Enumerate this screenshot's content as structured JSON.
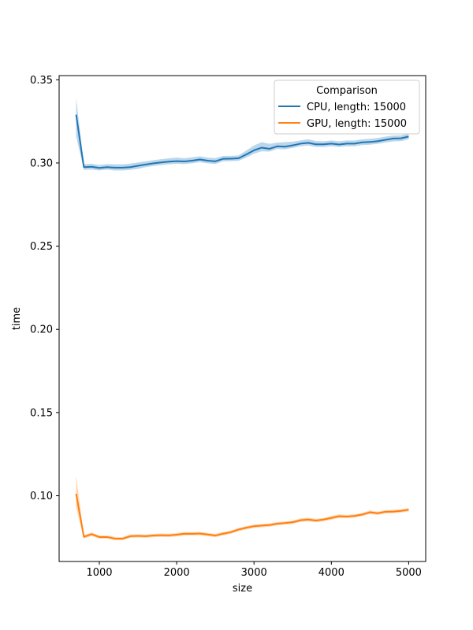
{
  "chart_data": {
    "type": "line",
    "title": "",
    "xlabel": "size",
    "ylabel": "time",
    "xlim": [
      480,
      5220
    ],
    "ylim": [
      0.0605,
      0.3525
    ],
    "xticks": [
      1000,
      2000,
      3000,
      4000,
      5000
    ],
    "xtick_labels": [
      "1000",
      "2000",
      "3000",
      "4000",
      "5000"
    ],
    "yticks": [
      0.1,
      0.15,
      0.2,
      0.25,
      0.3,
      0.35
    ],
    "ytick_labels": [
      "0.10",
      "0.15",
      "0.20",
      "0.25",
      "0.30",
      "0.35"
    ],
    "grid": false,
    "legend": {
      "title": "Comparison",
      "placement": "top-right"
    },
    "x": [
      700,
      800,
      900,
      1000,
      1100,
      1200,
      1300,
      1400,
      1500,
      1600,
      1700,
      1800,
      1900,
      2000,
      2100,
      2200,
      2300,
      2400,
      2500,
      2600,
      2700,
      2800,
      2900,
      3000,
      3100,
      3200,
      3300,
      3400,
      3500,
      3600,
      3700,
      3800,
      3900,
      4000,
      4100,
      4200,
      4300,
      4400,
      4500,
      4600,
      4700,
      4800,
      4900,
      5000
    ],
    "series": [
      {
        "name": "CPU, length: 15000",
        "color": "#1f77b4",
        "band_color": "#a6c8e4",
        "values": [
          0.329,
          0.2975,
          0.2977,
          0.297,
          0.2975,
          0.2972,
          0.2972,
          0.2975,
          0.2983,
          0.2991,
          0.2998,
          0.3003,
          0.3008,
          0.3011,
          0.3009,
          0.3014,
          0.3021,
          0.3014,
          0.301,
          0.3025,
          0.3026,
          0.3028,
          0.3051,
          0.3076,
          0.3092,
          0.3085,
          0.31,
          0.3098,
          0.3106,
          0.3116,
          0.3121,
          0.3112,
          0.3112,
          0.3116,
          0.3111,
          0.3116,
          0.3116,
          0.3124,
          0.3126,
          0.3131,
          0.3139,
          0.3147,
          0.3148,
          0.3159
        ],
        "band_low": [
          0.316,
          0.2958,
          0.296,
          0.2955,
          0.296,
          0.2955,
          0.2955,
          0.2958,
          0.2965,
          0.2975,
          0.2982,
          0.2987,
          0.2992,
          0.2995,
          0.2993,
          0.2998,
          0.3005,
          0.2998,
          0.2994,
          0.301,
          0.3011,
          0.3013,
          0.3032,
          0.3055,
          0.307,
          0.3068,
          0.3084,
          0.3082,
          0.309,
          0.31,
          0.3105,
          0.3096,
          0.3096,
          0.31,
          0.3096,
          0.31,
          0.31,
          0.3108,
          0.311,
          0.3115,
          0.3123,
          0.313,
          0.3131,
          0.3142
        ],
        "band_high": [
          0.339,
          0.2993,
          0.2995,
          0.2988,
          0.2993,
          0.2992,
          0.2992,
          0.2996,
          0.3003,
          0.301,
          0.3017,
          0.3023,
          0.3028,
          0.3032,
          0.3028,
          0.3034,
          0.304,
          0.3032,
          0.3029,
          0.3042,
          0.3043,
          0.3045,
          0.3075,
          0.3105,
          0.3125,
          0.3115,
          0.3122,
          0.3125,
          0.3128,
          0.3135,
          0.3142,
          0.3132,
          0.313,
          0.3135,
          0.313,
          0.3135,
          0.3135,
          0.3142,
          0.3145,
          0.315,
          0.3158,
          0.3165,
          0.3166,
          0.3177
        ]
      },
      {
        "name": "GPU, length: 15000",
        "color": "#ff7f0e",
        "band_color": "#ffc89a",
        "values": [
          0.1012,
          0.0753,
          0.0769,
          0.0752,
          0.0752,
          0.0743,
          0.0742,
          0.0757,
          0.0759,
          0.0757,
          0.0761,
          0.0763,
          0.0762,
          0.0766,
          0.0772,
          0.0771,
          0.0773,
          0.0767,
          0.0761,
          0.0772,
          0.0781,
          0.0797,
          0.0808,
          0.0817,
          0.0821,
          0.0824,
          0.0832,
          0.0836,
          0.0841,
          0.0853,
          0.0857,
          0.0851,
          0.0857,
          0.0867,
          0.0877,
          0.0875,
          0.0879,
          0.0887,
          0.0901,
          0.0895,
          0.0904,
          0.0905,
          0.0909,
          0.0916
        ],
        "band_low": [
          0.093,
          0.0743,
          0.0758,
          0.0742,
          0.0742,
          0.0733,
          0.0732,
          0.0747,
          0.0749,
          0.0747,
          0.0751,
          0.0753,
          0.0752,
          0.0756,
          0.0762,
          0.0761,
          0.0763,
          0.0757,
          0.0751,
          0.0762,
          0.0771,
          0.0787,
          0.0798,
          0.0807,
          0.0811,
          0.0814,
          0.0822,
          0.0826,
          0.0831,
          0.0842,
          0.0846,
          0.0841,
          0.0847,
          0.0856,
          0.0866,
          0.0865,
          0.0869,
          0.0877,
          0.089,
          0.0885,
          0.0894,
          0.0895,
          0.0899,
          0.0906
        ],
        "band_high": [
          0.112,
          0.0763,
          0.078,
          0.0762,
          0.0762,
          0.0753,
          0.0752,
          0.0767,
          0.0769,
          0.0767,
          0.0771,
          0.0773,
          0.0772,
          0.0776,
          0.0782,
          0.0781,
          0.0783,
          0.0777,
          0.0771,
          0.0782,
          0.0791,
          0.0807,
          0.0818,
          0.0827,
          0.0831,
          0.0834,
          0.0842,
          0.0846,
          0.0851,
          0.0864,
          0.0868,
          0.0861,
          0.0867,
          0.0878,
          0.0888,
          0.0885,
          0.0889,
          0.0897,
          0.0912,
          0.0905,
          0.0914,
          0.0915,
          0.0919,
          0.0926
        ]
      }
    ]
  }
}
